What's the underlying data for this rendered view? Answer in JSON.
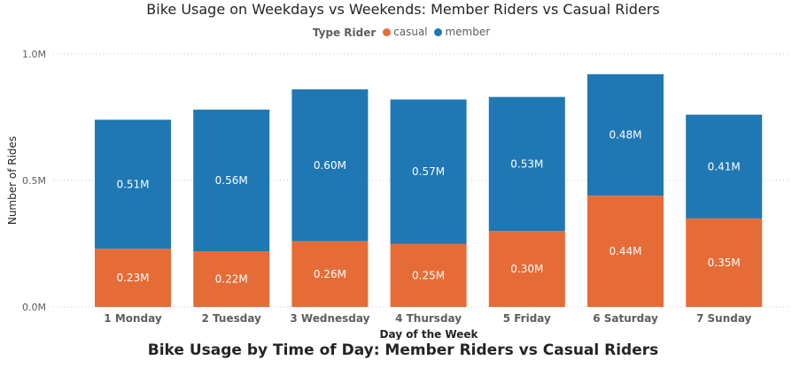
{
  "chart_data": {
    "type": "bar",
    "stacked": true,
    "title": "Bike Usage on Weekdays vs Weekends: Member Riders vs Casual Riders",
    "legend_title": "Type Rider",
    "legend_position": "top-center",
    "xlabel": "Day of the Week",
    "ylabel": "Number of Rides",
    "ylim": [
      0,
      1000000
    ],
    "yticks": [
      0,
      500000,
      1000000
    ],
    "ytick_labels": [
      "0.0M",
      "0.5M",
      "1.0M"
    ],
    "grid": true,
    "categories": [
      "1 Monday",
      "2 Tuesday",
      "3 Wednesday",
      "4 Thursday",
      "5 Friday",
      "6 Saturday",
      "7 Sunday"
    ],
    "series": [
      {
        "name": "casual",
        "color": "#E66C37",
        "values": [
          230000,
          220000,
          260000,
          250000,
          300000,
          440000,
          350000
        ],
        "labels": [
          "0.23M",
          "0.22M",
          "0.26M",
          "0.25M",
          "0.30M",
          "0.44M",
          "0.35M"
        ]
      },
      {
        "name": "member",
        "color": "#1F77B4",
        "values": [
          510000,
          560000,
          600000,
          570000,
          530000,
          480000,
          410000
        ],
        "labels": [
          "0.51M",
          "0.56M",
          "0.60M",
          "0.57M",
          "0.53M",
          "0.48M",
          "0.41M"
        ]
      }
    ]
  },
  "next_chart_title": "Bike Usage by Time of Day: Member Riders vs Casual Riders"
}
